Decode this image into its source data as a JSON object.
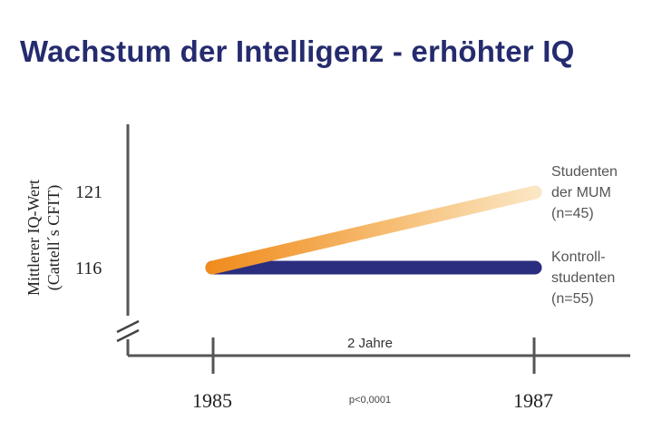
{
  "title": "Wachstum der Intelligenz - erhöhter IQ",
  "colors": {
    "title": "#252b6e",
    "control_series": "#2b2d7e",
    "mum_series_start": "#f08c1e",
    "mum_series_end": "#fbe6c3",
    "axis": "#555555"
  },
  "chart_data": {
    "type": "line",
    "ylabel_lines": [
      "Mittlerer IQ-Wert",
      "(Cattell´s CFIT)"
    ],
    "yticks": [
      116,
      121
    ],
    "ytick_labels": [
      "116",
      "121"
    ],
    "x": [
      "1985",
      "1987"
    ],
    "ylim": [
      111.5,
      125.5
    ],
    "axis_break": true,
    "interval_label": "2 Jahre",
    "significance": "p<0,0001",
    "grid": false,
    "series": [
      {
        "name_lines": [
          "Kontroll-",
          "studenten",
          "(n=55)"
        ],
        "values": [
          116,
          116
        ],
        "color": "#2b2d7e"
      },
      {
        "name_lines": [
          "Studenten",
          "der MUM",
          "(n=45)"
        ],
        "values": [
          116,
          121
        ],
        "color": "#f08c1e"
      }
    ]
  }
}
